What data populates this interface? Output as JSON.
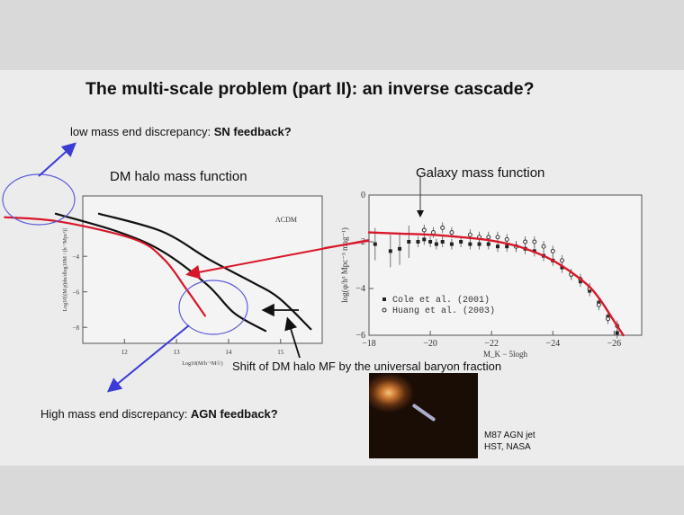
{
  "title": "The multi-scale problem (part II): an inverse cascade?",
  "low_mass_note": {
    "prefix": "low mass end discrepancy: ",
    "bold": "SN feedback?"
  },
  "high_mass_note": {
    "prefix": "High mass end discrepancy: ",
    "bold": "AGN feedback?"
  },
  "shift_note": "Shift of DM halo MF by the universal baryon fraction",
  "photo_caption": {
    "line1": "M87 AGN jet",
    "line2": "HST, NASA"
  },
  "colors": {
    "red": "#d8182a",
    "blue": "#3b3bd6",
    "black": "#111111"
  },
  "chart_data": [
    {
      "type": "line",
      "title": "DM halo mass function",
      "annotation": "ΛCDM",
      "xlabel": "Log10(M/h⁻¹M☉)",
      "ylabel": "Log10[(M/ρ̄)dn/dlog10M / (h⁻³Mpc³)]",
      "xlim": [
        11.2,
        15.8
      ],
      "ylim": [
        -8.9,
        -0.6
      ],
      "xticks": [
        12,
        13,
        14,
        15
      ],
      "yticks": [
        -4,
        -6,
        -8
      ],
      "series": [
        {
          "color": "#111111",
          "points": [
            [
              10.68,
              -1.6
            ],
            [
              11.86,
              -2.6
            ],
            [
              12.72,
              -3.7
            ],
            [
              13.59,
              -5.6
            ],
            [
              14.11,
              -7.2
            ],
            [
              14.71,
              -8.2
            ]
          ]
        },
        {
          "color": "#111111",
          "points": [
            [
              11.51,
              -1.6
            ],
            [
              12.72,
              -2.6
            ],
            [
              13.64,
              -4.2
            ],
            [
              14.45,
              -5.45
            ],
            [
              14.97,
              -6.35
            ],
            [
              15.58,
              -8.1
            ]
          ]
        },
        {
          "color": "#d8182a",
          "points": [
            [
              9.7,
              -1.8
            ],
            [
              10.77,
              -2.05
            ],
            [
              12.2,
              -3.05
            ],
            [
              12.77,
              -4.2
            ],
            [
              13.19,
              -5.85
            ],
            [
              13.55,
              -7.35
            ]
          ]
        }
      ]
    },
    {
      "type": "scatter",
      "title": "Galaxy mass function",
      "xlabel": "M_K − 5logh",
      "ylabel": "log(φ/h³ Mpc⁻³ mag⁻¹)",
      "xlim": [
        -18,
        -26.9
      ],
      "ylim": [
        -6,
        0
      ],
      "xticks": [
        -18,
        -20,
        -22,
        -24,
        -26
      ],
      "yticks": [
        0,
        -2,
        -4,
        -6
      ],
      "legend": "bottom-left",
      "series": [
        {
          "name": "Cole et al. (2001)",
          "marker": "filled",
          "points": [
            [
              -18.2,
              -2.1
            ],
            [
              -18.7,
              -2.4
            ],
            [
              -19.0,
              -2.3
            ],
            [
              -19.3,
              -2.0
            ],
            [
              -19.6,
              -2.0
            ],
            [
              -19.8,
              -1.9
            ],
            [
              -20.0,
              -2.0
            ],
            [
              -20.2,
              -2.1
            ],
            [
              -20.4,
              -2.0
            ],
            [
              -20.7,
              -2.1
            ],
            [
              -21.0,
              -2.0
            ],
            [
              -21.3,
              -2.1
            ],
            [
              -21.6,
              -2.1
            ],
            [
              -21.9,
              -2.1
            ],
            [
              -22.2,
              -2.2
            ],
            [
              -22.5,
              -2.2
            ],
            [
              -22.8,
              -2.2
            ],
            [
              -23.1,
              -2.3
            ],
            [
              -23.4,
              -2.4
            ],
            [
              -23.7,
              -2.6
            ],
            [
              -24.0,
              -2.8
            ],
            [
              -24.3,
              -3.1
            ],
            [
              -24.6,
              -3.4
            ],
            [
              -24.9,
              -3.7
            ],
            [
              -25.2,
              -4.1
            ],
            [
              -25.5,
              -4.6
            ],
            [
              -25.8,
              -5.2
            ],
            [
              -26.1,
              -5.9
            ]
          ]
        },
        {
          "name": "Huang et al. (2003)",
          "marker": "open",
          "points": [
            [
              -19.8,
              -1.5
            ],
            [
              -20.1,
              -1.6
            ],
            [
              -20.4,
              -1.4
            ],
            [
              -20.7,
              -1.6
            ],
            [
              -21.3,
              -1.7
            ],
            [
              -21.6,
              -1.8
            ],
            [
              -21.9,
              -1.8
            ],
            [
              -22.2,
              -1.8
            ],
            [
              -22.5,
              -1.9
            ],
            [
              -22.8,
              -2.2
            ],
            [
              -23.1,
              -2.0
            ],
            [
              -23.4,
              -2.0
            ],
            [
              -23.7,
              -2.2
            ],
            [
              -24.0,
              -2.4
            ],
            [
              -24.3,
              -2.8
            ],
            [
              -24.6,
              -3.4
            ],
            [
              -24.9,
              -3.6
            ],
            [
              -25.2,
              -4.0
            ],
            [
              -25.5,
              -4.7
            ],
            [
              -25.8,
              -5.3
            ],
            [
              -26.1,
              -5.6
            ]
          ]
        }
      ],
      "fit": {
        "color": "#d8182a",
        "points": [
          [
            -18,
            -1.6
          ],
          [
            -19,
            -1.65
          ],
          [
            -20,
            -1.7
          ],
          [
            -21,
            -1.8
          ],
          [
            -22,
            -1.95
          ],
          [
            -23,
            -2.25
          ],
          [
            -24,
            -2.8
          ],
          [
            -25,
            -3.7
          ],
          [
            -25.5,
            -4.4
          ],
          [
            -26,
            -5.4
          ],
          [
            -26.3,
            -6.0
          ]
        ]
      }
    }
  ]
}
